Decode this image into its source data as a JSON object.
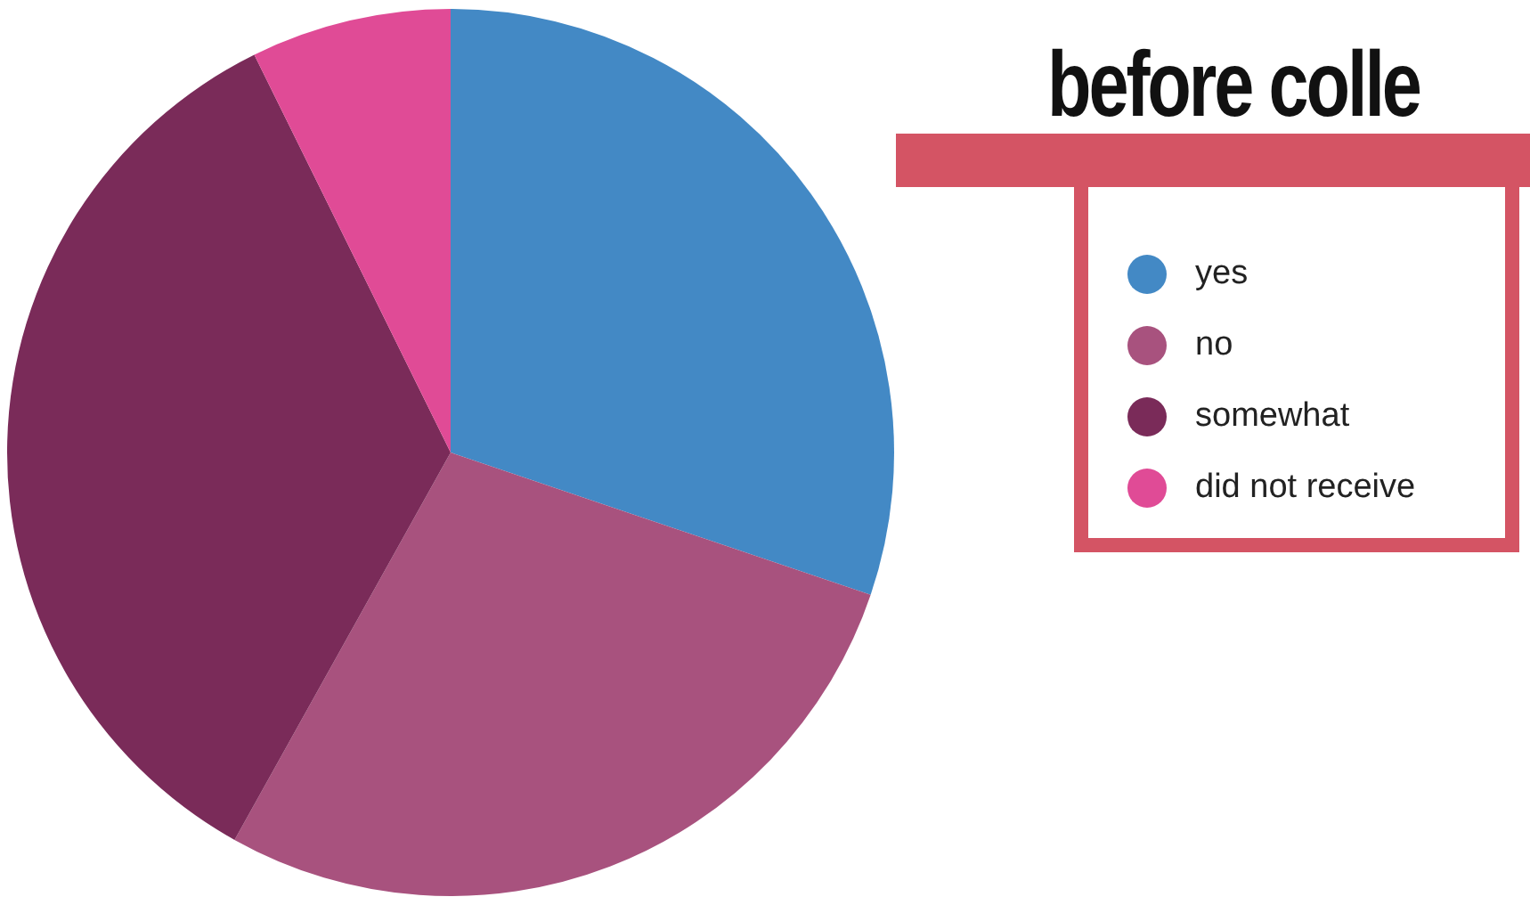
{
  "chart_data": {
    "type": "pie",
    "title": "before colle",
    "categories": [
      "yes",
      "no",
      "somewhat",
      "did not receive"
    ],
    "values": [
      30.2,
      27.9,
      34.6,
      7.3
    ],
    "colors": [
      "#4389c5",
      "#a8527e",
      "#7a2b59",
      "#e04b96"
    ],
    "legend": "right"
  }
}
